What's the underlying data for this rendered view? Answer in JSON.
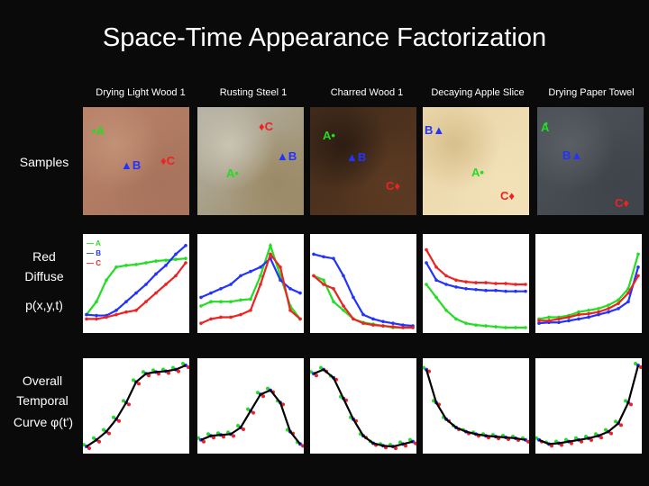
{
  "title": "Space-Time Appearance Factorization",
  "columns": [
    {
      "label": "Drying Light Wood 1",
      "photo_colors": [
        "#b9836a",
        "#a8735c",
        "#c29176"
      ],
      "markers": [
        {
          "label": "A",
          "color": "#22dd22",
          "side": "right"
        },
        {
          "label": "B",
          "color": "#2233ff",
          "side": "right"
        },
        {
          "label": "C",
          "color": "#ee2222",
          "side": "right"
        }
      ]
    },
    {
      "label": "Rusting Steel 1",
      "photo_colors": [
        "#b6b4a8",
        "#9b8a66",
        "#c9c3b3"
      ],
      "markers": [
        {
          "label": "C",
          "color": "#ee2222",
          "side": "right"
        },
        {
          "label": "B",
          "color": "#2233ff",
          "side": "right"
        },
        {
          "label": "A",
          "color": "#22dd22",
          "side": "left"
        }
      ]
    },
    {
      "label": "Charred Wood 1",
      "photo_colors": [
        "#3f2a1a",
        "#5b3a22",
        "#2c1c12"
      ],
      "markers": [
        {
          "label": "A",
          "color": "#22dd22",
          "side": "left"
        },
        {
          "label": "B",
          "color": "#2233ff",
          "side": "right"
        },
        {
          "label": "C",
          "color": "#ee2222",
          "side": "left"
        }
      ]
    },
    {
      "label": "Decaying Apple Slice",
      "photo_colors": [
        "#e9d5a8",
        "#f2e1b8",
        "#d8bf8c"
      ],
      "markers": [
        {
          "label": "B",
          "color": "#2233ff",
          "side": "right"
        },
        {
          "label": "A",
          "color": "#22dd22",
          "side": "left"
        },
        {
          "label": "C",
          "color": "#ee2222",
          "side": "left"
        }
      ]
    },
    {
      "label": "Drying Paper Towel",
      "photo_colors": [
        "#4e535a",
        "#3f444b",
        "#5a5f66"
      ],
      "markers": [
        {
          "label": "A",
          "color": "#22dd22",
          "side": "left"
        },
        {
          "label": "B",
          "color": "#2233ff",
          "side": "right"
        },
        {
          "label": "C",
          "color": "#ee2222",
          "side": "left"
        }
      ]
    }
  ],
  "row_labels": {
    "samples": "Samples",
    "diffuse_line1": "Red",
    "diffuse_line2": "Diffuse",
    "diffuse_line3": "p(x,y,t)",
    "temporal_line1": "Overall",
    "temporal_line2": "Temporal",
    "temporal_line3": "Curve φ(t')"
  },
  "legend": [
    "A",
    "B",
    "C"
  ],
  "series_colors": {
    "A": "#22dd22",
    "B": "#2233ff",
    "C": "#ee2222",
    "overall": "#000000"
  },
  "chart_data": [
    {
      "type": "line",
      "series": [
        {
          "name": "A",
          "values": [
            0.15,
            0.3,
            0.55,
            0.7,
            0.72,
            0.73,
            0.75,
            0.77,
            0.78,
            0.79,
            0.8
          ]
        },
        {
          "name": "B",
          "values": [
            0.15,
            0.14,
            0.14,
            0.2,
            0.3,
            0.4,
            0.5,
            0.62,
            0.72,
            0.85,
            0.95
          ]
        },
        {
          "name": "C",
          "values": [
            0.1,
            0.1,
            0.12,
            0.15,
            0.18,
            0.2,
            0.3,
            0.4,
            0.5,
            0.6,
            0.75
          ]
        }
      ]
    },
    {
      "type": "line",
      "series": [
        {
          "name": "A",
          "values": [
            0.25,
            0.3,
            0.3,
            0.3,
            0.32,
            0.33,
            0.6,
            0.95,
            0.6,
            0.25,
            0.1
          ]
        },
        {
          "name": "B",
          "values": [
            0.35,
            0.4,
            0.45,
            0.5,
            0.6,
            0.65,
            0.7,
            0.8,
            0.55,
            0.45,
            0.4
          ]
        },
        {
          "name": "C",
          "values": [
            0.05,
            0.1,
            0.12,
            0.12,
            0.15,
            0.2,
            0.5,
            0.85,
            0.7,
            0.2,
            0.1
          ]
        }
      ]
    },
    {
      "type": "line",
      "series": [
        {
          "name": "A",
          "values": [
            0.6,
            0.55,
            0.3,
            0.2,
            0.1,
            0.06,
            0.04,
            0.02,
            0.0,
            0.0,
            0.0
          ]
        },
        {
          "name": "B",
          "values": [
            0.85,
            0.82,
            0.8,
            0.6,
            0.35,
            0.15,
            0.1,
            0.07,
            0.05,
            0.03,
            0.02
          ]
        },
        {
          "name": "C",
          "values": [
            0.6,
            0.5,
            0.45,
            0.25,
            0.1,
            0.05,
            0.03,
            0.02,
            0.01,
            0.0,
            0.0
          ]
        }
      ]
    },
    {
      "type": "line",
      "series": [
        {
          "name": "A",
          "values": [
            0.5,
            0.35,
            0.2,
            0.1,
            0.05,
            0.03,
            0.02,
            0.01,
            0.0,
            0.0,
            0.0
          ]
        },
        {
          "name": "B",
          "values": [
            0.75,
            0.55,
            0.5,
            0.47,
            0.45,
            0.44,
            0.43,
            0.43,
            0.42,
            0.42,
            0.42
          ]
        },
        {
          "name": "C",
          "values": [
            0.9,
            0.7,
            0.6,
            0.55,
            0.53,
            0.52,
            0.52,
            0.51,
            0.51,
            0.5,
            0.5
          ]
        }
      ]
    },
    {
      "type": "line",
      "series": [
        {
          "name": "A",
          "values": [
            0.1,
            0.12,
            0.12,
            0.14,
            0.18,
            0.2,
            0.22,
            0.26,
            0.32,
            0.45,
            0.85
          ]
        },
        {
          "name": "B",
          "values": [
            0.05,
            0.06,
            0.06,
            0.08,
            0.1,
            0.12,
            0.15,
            0.18,
            0.22,
            0.3,
            0.7
          ]
        },
        {
          "name": "C",
          "values": [
            0.08,
            0.08,
            0.1,
            0.12,
            0.15,
            0.16,
            0.18,
            0.22,
            0.28,
            0.4,
            0.6
          ]
        }
      ]
    }
  ],
  "temporal_data": [
    [
      0.02,
      0.1,
      0.2,
      0.35,
      0.55,
      0.8,
      0.9,
      0.92,
      0.93,
      0.95,
      1.0
    ],
    [
      0.1,
      0.15,
      0.16,
      0.17,
      0.25,
      0.45,
      0.65,
      0.7,
      0.55,
      0.2,
      0.05
    ],
    [
      0.9,
      0.95,
      0.85,
      0.6,
      0.35,
      0.15,
      0.06,
      0.03,
      0.02,
      0.05,
      0.08
    ],
    [
      0.95,
      0.55,
      0.35,
      0.25,
      0.2,
      0.17,
      0.15,
      0.14,
      0.13,
      0.12,
      0.1
    ],
    [
      0.1,
      0.05,
      0.06,
      0.08,
      0.1,
      0.12,
      0.15,
      0.2,
      0.3,
      0.55,
      1.0
    ]
  ]
}
